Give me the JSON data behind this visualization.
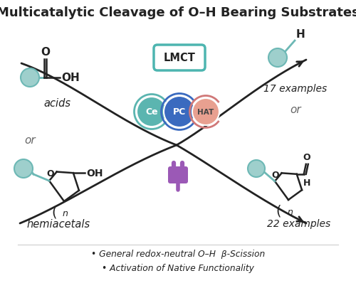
{
  "title": "Multicatalytic Cleavage of O–H Bearing Substrates",
  "bg": "#ffffff",
  "dark": "#222222",
  "gray": "#666666",
  "teal_circle": "#6db8b5",
  "teal_light": "#9ecfcc",
  "teal_lmct_border": "#4db5b0",
  "teal_fill": "#5bb5b0",
  "blue_pc": "#3a6abf",
  "salmon_hat": "#e8a090",
  "purple_plug": "#9b59b6",
  "lmct_text": "LMCT",
  "ce_text": "Ce",
  "pc_text": "PC",
  "hat_text": "HAT",
  "acids_label": "acids",
  "or_label": "or",
  "hemiacetals_label": "hemiacetals",
  "ex1": "17 examples",
  "ex2": "22 examples",
  "bullet1": "• General redox-neutral O–H  β-Scission",
  "bullet2": "• Activation of Native Functionality"
}
